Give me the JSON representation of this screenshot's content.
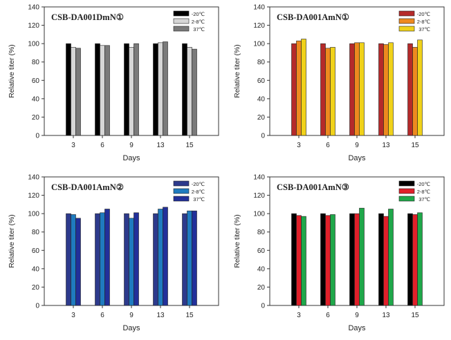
{
  "chart_data": [
    {
      "type": "bar",
      "title": "CSB-DA001DmN①",
      "xlabel": "Days",
      "ylabel": "Relative titer (%)",
      "ylim": [
        0,
        140
      ],
      "yticks": [
        0,
        20,
        40,
        60,
        80,
        100,
        120,
        140
      ],
      "grid": false,
      "legend_position": "top-right",
      "categories": [
        "3",
        "6",
        "9",
        "13",
        "15"
      ],
      "series": [
        {
          "name": "-20℃",
          "color": "#000000",
          "values": [
            100,
            100,
            100,
            100,
            100
          ]
        },
        {
          "name": "2-8℃",
          "color": "#d6d6d6",
          "values": [
            96,
            98,
            96,
            101,
            96
          ]
        },
        {
          "name": "37℃",
          "color": "#7a7a7a",
          "values": [
            95,
            98,
            100,
            102,
            94
          ]
        }
      ]
    },
    {
      "type": "bar",
      "title": "CSB-DA001AmN①",
      "xlabel": "Days",
      "ylabel": "Relative titer (%)",
      "ylim": [
        0,
        140
      ],
      "yticks": [
        0,
        20,
        40,
        60,
        80,
        100,
        120,
        140
      ],
      "grid": false,
      "legend_position": "top-right",
      "categories": [
        "3",
        "6",
        "9",
        "13",
        "15"
      ],
      "series": [
        {
          "name": "-20℃",
          "color": "#b52a2a",
          "values": [
            100,
            100,
            100,
            100,
            100
          ]
        },
        {
          "name": "2-8℃",
          "color": "#ee8a1f",
          "values": [
            103,
            95,
            101,
            99,
            96
          ]
        },
        {
          "name": "37℃",
          "color": "#f0d21a",
          "values": [
            105,
            96,
            101,
            101,
            104
          ]
        }
      ]
    },
    {
      "type": "bar",
      "title": "CSB-DA001AmN②",
      "xlabel": "Days",
      "ylabel": "Relative titer (%)",
      "ylim": [
        0,
        140
      ],
      "yticks": [
        0,
        20,
        40,
        60,
        80,
        100,
        120,
        140
      ],
      "grid": false,
      "legend_position": "top-right",
      "categories": [
        "3",
        "6",
        "9",
        "13",
        "15"
      ],
      "series": [
        {
          "name": "-20℃",
          "color": "#2d3a8c",
          "values": [
            100,
            100,
            100,
            100,
            100
          ]
        },
        {
          "name": "2-8℃",
          "color": "#1f7bbf",
          "values": [
            99,
            101,
            95,
            105,
            103
          ]
        },
        {
          "name": "37℃",
          "color": "#22309a",
          "values": [
            95,
            105,
            101,
            107,
            103
          ]
        }
      ]
    },
    {
      "type": "bar",
      "title": "CSB-DA001AmN③",
      "xlabel": "Days",
      "ylabel": "Relative titer (%)",
      "ylim": [
        0,
        140
      ],
      "yticks": [
        0,
        20,
        40,
        60,
        80,
        100,
        120,
        140
      ],
      "grid": false,
      "legend_position": "top-right",
      "categories": [
        "3",
        "6",
        "9",
        "13",
        "15"
      ],
      "series": [
        {
          "name": "-20℃",
          "color": "#000000",
          "values": [
            100,
            100,
            100,
            100,
            100
          ]
        },
        {
          "name": "2-8℃",
          "color": "#e0202a",
          "values": [
            98,
            98,
            100,
            97,
            99
          ]
        },
        {
          "name": "37℃",
          "color": "#1fa84a",
          "values": [
            97,
            99,
            106,
            105,
            101
          ]
        }
      ]
    }
  ]
}
